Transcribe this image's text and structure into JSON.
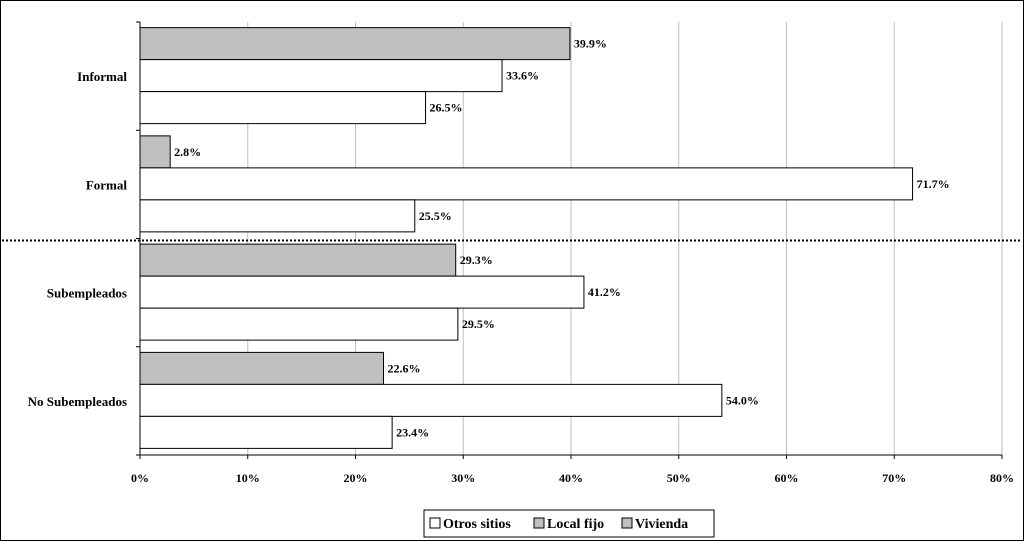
{
  "chart_data": {
    "type": "bar",
    "orientation": "horizontal",
    "categories": [
      "Informal",
      "Formal",
      "Subempleados",
      "No Subempleados"
    ],
    "series": [
      {
        "name": "Vivienda",
        "color": "#c0c0c0",
        "values": [
          39.9,
          2.8,
          29.3,
          22.6
        ]
      },
      {
        "name": "Local fijo",
        "color": "#ffffff",
        "values": [
          33.6,
          71.7,
          41.2,
          54.0
        ]
      },
      {
        "name": "Otros sitios",
        "color": "#ffffff",
        "values": [
          26.5,
          25.5,
          29.5,
          23.4
        ]
      }
    ],
    "xlim": [
      0,
      80
    ],
    "x_ticks": [
      "0%",
      "10%",
      "20%",
      "30%",
      "40%",
      "50%",
      "60%",
      "70%",
      "80%"
    ],
    "value_labels": [
      [
        "39.9%",
        "2.8%",
        "29.3%",
        "22.6%"
      ],
      [
        "33.6%",
        "71.7%",
        "41.2%",
        "54.0%"
      ],
      [
        "26.5%",
        "25.5%",
        "29.5%",
        "23.4%"
      ]
    ],
    "grid": true,
    "separator": "dotted line between Formal and Subempleados",
    "legend": {
      "position": "bottom",
      "items": [
        {
          "label": "Otros sitios",
          "color": "#ffffff"
        },
        {
          "label": "Local fijo",
          "color": "#c0c0c0"
        },
        {
          "label": "Vivienda",
          "color": "#c0c0c0"
        }
      ]
    }
  }
}
